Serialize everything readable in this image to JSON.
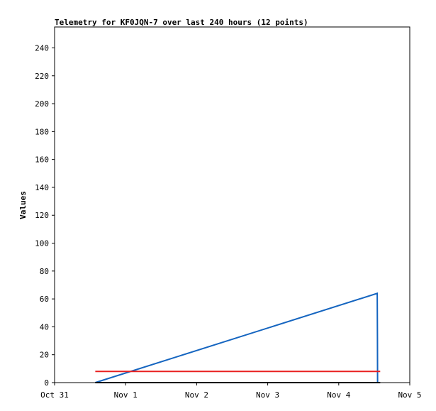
{
  "chart_data": {
    "type": "line",
    "title": "Telemetry for KF0JQN-7 over last 240 hours (12 points)",
    "xlabel": "",
    "ylabel": "Values",
    "ylim": [
      0,
      255
    ],
    "yticks": [
      0,
      20,
      40,
      60,
      80,
      100,
      120,
      140,
      160,
      180,
      200,
      220,
      240
    ],
    "xlim": [
      "2023-10-31T00:00",
      "2023-11-05T00:00"
    ],
    "xticks": [
      {
        "label": "Oct 31",
        "x": "2023-10-31T00:00"
      },
      {
        "label": "Nov 1",
        "x": "2023-11-01T00:00"
      },
      {
        "label": "Nov 2",
        "x": "2023-11-02T00:00"
      },
      {
        "label": "Nov 3",
        "x": "2023-11-03T00:00"
      },
      {
        "label": "Nov 4",
        "x": "2023-11-04T00:00"
      },
      {
        "label": "Nov 5",
        "x": "2023-11-05T00:00"
      }
    ],
    "grid": false,
    "legend": "none",
    "series": [
      {
        "color": "#1565c0",
        "points": [
          {
            "x": "2023-10-31T13:45",
            "y": 0
          },
          {
            "x": "2023-11-04T13:00",
            "y": 64
          },
          {
            "x": "2023-11-04T13:05",
            "y": 32
          },
          {
            "x": "2023-11-04T13:08",
            "y": 0
          }
        ]
      },
      {
        "color": "#e82020",
        "points": [
          {
            "x": "2023-10-31T13:45",
            "y": 8
          },
          {
            "x": "2023-11-04T14:00",
            "y": 8
          }
        ]
      },
      {
        "color": "#000000",
        "points": [
          {
            "x": "2023-10-31T13:45",
            "y": 0
          },
          {
            "x": "2023-11-04T14:00",
            "y": 0
          }
        ]
      }
    ]
  }
}
